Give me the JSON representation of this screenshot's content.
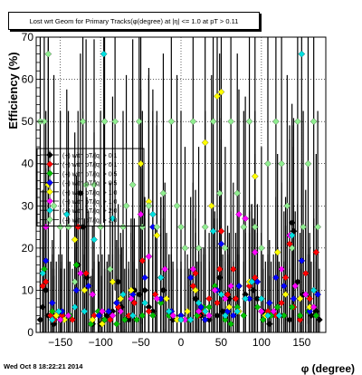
{
  "title": "Lost wrt Geom for Primary Tracks(φ(degree) at |η| <= 1.0 at pT > 0.11",
  "footer": "Wed Oct  8 18:22:21 2014",
  "chart_data": {
    "type": "scatter",
    "xlabel": "φ (degree)",
    "ylabel": "Efficiency (%)",
    "xlim": [
      -180,
      180
    ],
    "ylim": [
      0,
      70
    ],
    "xticks": [
      -150,
      -100,
      -50,
      0,
      50,
      100,
      150
    ],
    "xtick_labels": [
      "−150",
      "−100",
      "−50",
      "0",
      "50",
      "100",
      "150"
    ],
    "yticks": [
      0,
      10,
      20,
      30,
      40,
      50,
      60,
      70
    ],
    "grid": true,
    "legend_position": "left",
    "series": [
      {
        "name": "(+) with pT/|q| > 0.1",
        "color": "#000000",
        "points": [
          [
            -175,
            3
          ],
          [
            -172,
            6
          ],
          [
            -168,
            10
          ],
          [
            -165,
            4
          ],
          [
            -158,
            2
          ],
          [
            -150,
            3
          ],
          [
            -140,
            4
          ],
          [
            -128,
            16
          ],
          [
            -125,
            33
          ],
          [
            -122,
            25
          ],
          [
            -117,
            13
          ],
          [
            -110,
            2
          ],
          [
            -100,
            2
          ],
          [
            -92,
            4
          ],
          [
            -85,
            5
          ],
          [
            -80,
            7
          ],
          [
            -78,
            12
          ],
          [
            -74,
            6
          ],
          [
            -65,
            3
          ],
          [
            -58,
            10
          ],
          [
            -52,
            9
          ],
          [
            -45,
            10
          ],
          [
            -40,
            6
          ],
          [
            -35,
            5
          ],
          [
            -22,
            10
          ],
          [
            -15,
            5
          ],
          [
            -10,
            3
          ],
          [
            0,
            4
          ],
          [
            10,
            3
          ],
          [
            18,
            8
          ],
          [
            25,
            4
          ],
          [
            30,
            3
          ],
          [
            35,
            3
          ],
          [
            45,
            4
          ],
          [
            48,
            13
          ],
          [
            52,
            5
          ],
          [
            60,
            8
          ],
          [
            72,
            11
          ],
          [
            80,
            9
          ],
          [
            90,
            10
          ],
          [
            95,
            8
          ],
          [
            102,
            5
          ],
          [
            110,
            2
          ],
          [
            120,
            4
          ],
          [
            128,
            4
          ],
          [
            135,
            3
          ],
          [
            138,
            26
          ],
          [
            140,
            24
          ],
          [
            145,
            12
          ],
          [
            152,
            9
          ],
          [
            162,
            4
          ],
          [
            168,
            5
          ],
          [
            172,
            3
          ]
        ]
      },
      {
        "name": "(−) with pT/|q| > 0.1",
        "color": "#ff0000",
        "points": [
          [
            -172,
            11
          ],
          [
            -168,
            12
          ],
          [
            -162,
            4
          ],
          [
            -158,
            3
          ],
          [
            -148,
            4
          ],
          [
            -135,
            3
          ],
          [
            -128,
            25
          ],
          [
            -118,
            14
          ],
          [
            -108,
            4
          ],
          [
            -95,
            3
          ],
          [
            -88,
            3
          ],
          [
            -78,
            6
          ],
          [
            -65,
            4
          ],
          [
            -58,
            7
          ],
          [
            -48,
            17
          ],
          [
            -40,
            5
          ],
          [
            -32,
            9
          ],
          [
            -25,
            13
          ],
          [
            -12,
            5
          ],
          [
            0,
            3
          ],
          [
            15,
            11
          ],
          [
            18,
            14
          ],
          [
            22,
            4
          ],
          [
            28,
            5
          ],
          [
            35,
            8
          ],
          [
            45,
            7
          ],
          [
            48,
            15
          ],
          [
            50,
            24
          ],
          [
            58,
            9
          ],
          [
            65,
            15
          ],
          [
            68,
            8
          ],
          [
            80,
            8
          ],
          [
            85,
            11
          ],
          [
            92,
            13
          ],
          [
            100,
            8
          ],
          [
            108,
            5
          ],
          [
            118,
            4
          ],
          [
            125,
            7
          ],
          [
            130,
            13
          ],
          [
            135,
            21
          ],
          [
            140,
            6
          ],
          [
            148,
            3
          ],
          [
            155,
            14
          ],
          [
            160,
            8
          ],
          [
            168,
            19
          ]
        ]
      },
      {
        "name": "(+) with pT/|q| > 0.5",
        "color": "#00c000",
        "points": [
          [
            -170,
            15
          ],
          [
            -160,
            5
          ],
          [
            -145,
            3
          ],
          [
            -138,
            4
          ],
          [
            -130,
            16
          ],
          [
            -112,
            2
          ],
          [
            -103,
            5
          ],
          [
            -95,
            3
          ],
          [
            -80,
            2
          ],
          [
            -70,
            3
          ],
          [
            -55,
            3
          ],
          [
            -48,
            4
          ],
          [
            -35,
            4
          ],
          [
            -25,
            7
          ],
          [
            -15,
            4
          ],
          [
            -5,
            3
          ],
          [
            10,
            3
          ],
          [
            20,
            4
          ],
          [
            28,
            6
          ],
          [
            35,
            6
          ],
          [
            42,
            11
          ],
          [
            55,
            3
          ],
          [
            62,
            2
          ],
          [
            70,
            6
          ],
          [
            78,
            4
          ],
          [
            88,
            12
          ],
          [
            95,
            6
          ],
          [
            102,
            3
          ],
          [
            112,
            4
          ],
          [
            120,
            6
          ],
          [
            128,
            4
          ],
          [
            138,
            6
          ],
          [
            148,
            4
          ],
          [
            158,
            5
          ],
          [
            168,
            4
          ]
        ]
      },
      {
        "name": "(−) with pT/|q| > 0.5",
        "color": "#0000ff",
        "points": [
          [
            -168,
            17
          ],
          [
            -160,
            7
          ],
          [
            -148,
            5
          ],
          [
            -130,
            10
          ],
          [
            -115,
            11
          ],
          [
            -102,
            4
          ],
          [
            -90,
            5
          ],
          [
            -80,
            7
          ],
          [
            -60,
            9
          ],
          [
            -45,
            13
          ],
          [
            -35,
            25
          ],
          [
            -25,
            8
          ],
          [
            -12,
            5
          ],
          [
            0,
            4
          ],
          [
            12,
            13
          ],
          [
            25,
            6
          ],
          [
            30,
            3
          ],
          [
            45,
            10
          ],
          [
            50,
            21
          ],
          [
            58,
            5
          ],
          [
            65,
            4
          ],
          [
            72,
            11
          ],
          [
            85,
            8
          ],
          [
            95,
            12
          ],
          [
            110,
            7
          ],
          [
            118,
            13
          ],
          [
            128,
            11
          ],
          [
            140,
            8
          ],
          [
            150,
            17
          ],
          [
            160,
            5
          ],
          [
            170,
            9
          ]
        ]
      },
      {
        "name": "(+) with pT/|q| > 1.0",
        "color": "#ffff00",
        "points": [
          [
            -165,
            35
          ],
          [
            -155,
            4
          ],
          [
            -145,
            3
          ],
          [
            -132,
            22
          ],
          [
            -120,
            10
          ],
          [
            -110,
            3
          ],
          [
            -98,
            2
          ],
          [
            -85,
            12
          ],
          [
            -75,
            8
          ],
          [
            -62,
            10
          ],
          [
            -50,
            40
          ],
          [
            -40,
            31
          ],
          [
            -30,
            23
          ],
          [
            -18,
            8
          ],
          [
            -5,
            3
          ],
          [
            8,
            5
          ],
          [
            18,
            10
          ],
          [
            30,
            45
          ],
          [
            38,
            30
          ],
          [
            45,
            56
          ],
          [
            50,
            57
          ],
          [
            60,
            6
          ],
          [
            72,
            5
          ],
          [
            85,
            12
          ],
          [
            92,
            37
          ],
          [
            105,
            4
          ],
          [
            120,
            19
          ],
          [
            130,
            9
          ],
          [
            148,
            8
          ],
          [
            160,
            6
          ]
        ]
      },
      {
        "name": "(−) with pT/|q| > 1.0",
        "color": "#ff00ff",
        "points": [
          [
            -168,
            25
          ],
          [
            -150,
            3
          ],
          [
            -140,
            4
          ],
          [
            -125,
            14
          ],
          [
            -110,
            9
          ],
          [
            -98,
            5
          ],
          [
            -85,
            4
          ],
          [
            -75,
            5
          ],
          [
            -62,
            8
          ],
          [
            -50,
            28
          ],
          [
            -40,
            18
          ],
          [
            -30,
            8
          ],
          [
            -20,
            15
          ],
          [
            -10,
            4
          ],
          [
            5,
            3
          ],
          [
            15,
            15
          ],
          [
            22,
            5
          ],
          [
            35,
            4
          ],
          [
            42,
            10
          ],
          [
            55,
            8
          ],
          [
            62,
            11
          ],
          [
            72,
            28
          ],
          [
            80,
            27
          ],
          [
            92,
            19
          ],
          [
            100,
            5
          ],
          [
            115,
            5
          ],
          [
            125,
            15
          ],
          [
            135,
            23
          ],
          [
            142,
            11
          ],
          [
            155,
            9
          ],
          [
            165,
            6
          ]
        ]
      },
      {
        "name": "(+) with pT/|q| > 2.0",
        "color": "#00e0e0",
        "points": [
          [
            -172,
            14
          ],
          [
            -160,
            3
          ],
          [
            -152,
            5
          ],
          [
            -142,
            28
          ],
          [
            -132,
            6
          ],
          [
            -120,
            5
          ],
          [
            -108,
            22
          ],
          [
            -96,
            66
          ],
          [
            -85,
            27
          ],
          [
            -72,
            9
          ],
          [
            -60,
            4
          ],
          [
            -45,
            7
          ],
          [
            -35,
            28
          ],
          [
            -25,
            13
          ],
          [
            -15,
            5
          ],
          [
            0,
            3
          ],
          [
            12,
            3
          ],
          [
            22,
            7
          ],
          [
            30,
            5
          ],
          [
            40,
            24
          ],
          [
            50,
            9
          ],
          [
            55,
            4
          ],
          [
            70,
            5
          ],
          [
            80,
            8
          ],
          [
            88,
            12
          ],
          [
            100,
            8
          ],
          [
            108,
            4
          ],
          [
            122,
            4
          ],
          [
            138,
            23
          ],
          [
            150,
            66
          ],
          [
            165,
            10
          ]
        ]
      },
      {
        "name": "(−) with pT/|q| > 2.0",
        "color": "#90ee90",
        "points": [
          [
            -175,
            50
          ],
          [
            -170,
            50
          ],
          [
            -165,
            66
          ],
          [
            -158,
            30
          ],
          [
            -150,
            25
          ],
          [
            -140,
            25
          ],
          [
            -132,
            12
          ],
          [
            -122,
            50
          ],
          [
            -118,
            35
          ],
          [
            -108,
            35
          ],
          [
            -100,
            25
          ],
          [
            -95,
            50
          ],
          [
            -88,
            15
          ],
          [
            -82,
            50
          ],
          [
            -72,
            25
          ],
          [
            -68,
            30
          ],
          [
            -60,
            35
          ],
          [
            -52,
            50
          ],
          [
            -48,
            25
          ],
          [
            -40,
            30
          ],
          [
            -30,
            25
          ],
          [
            -22,
            33
          ],
          [
            -12,
            50
          ],
          [
            -5,
            30
          ],
          [
            0,
            25
          ],
          [
            5,
            20
          ],
          [
            15,
            50
          ],
          [
            22,
            20
          ],
          [
            30,
            25
          ],
          [
            40,
            50
          ],
          [
            48,
            33
          ],
          [
            55,
            20
          ],
          [
            62,
            50
          ],
          [
            70,
            33
          ],
          [
            78,
            25
          ],
          [
            85,
            50
          ],
          [
            92,
            25
          ],
          [
            100,
            20
          ],
          [
            108,
            40
          ],
          [
            118,
            50
          ],
          [
            125,
            40
          ],
          [
            132,
            30
          ],
          [
            138,
            20
          ],
          [
            145,
            50
          ],
          [
            152,
            25
          ],
          [
            158,
            40
          ],
          [
            165,
            50
          ],
          [
            170,
            25
          ]
        ]
      }
    ]
  }
}
